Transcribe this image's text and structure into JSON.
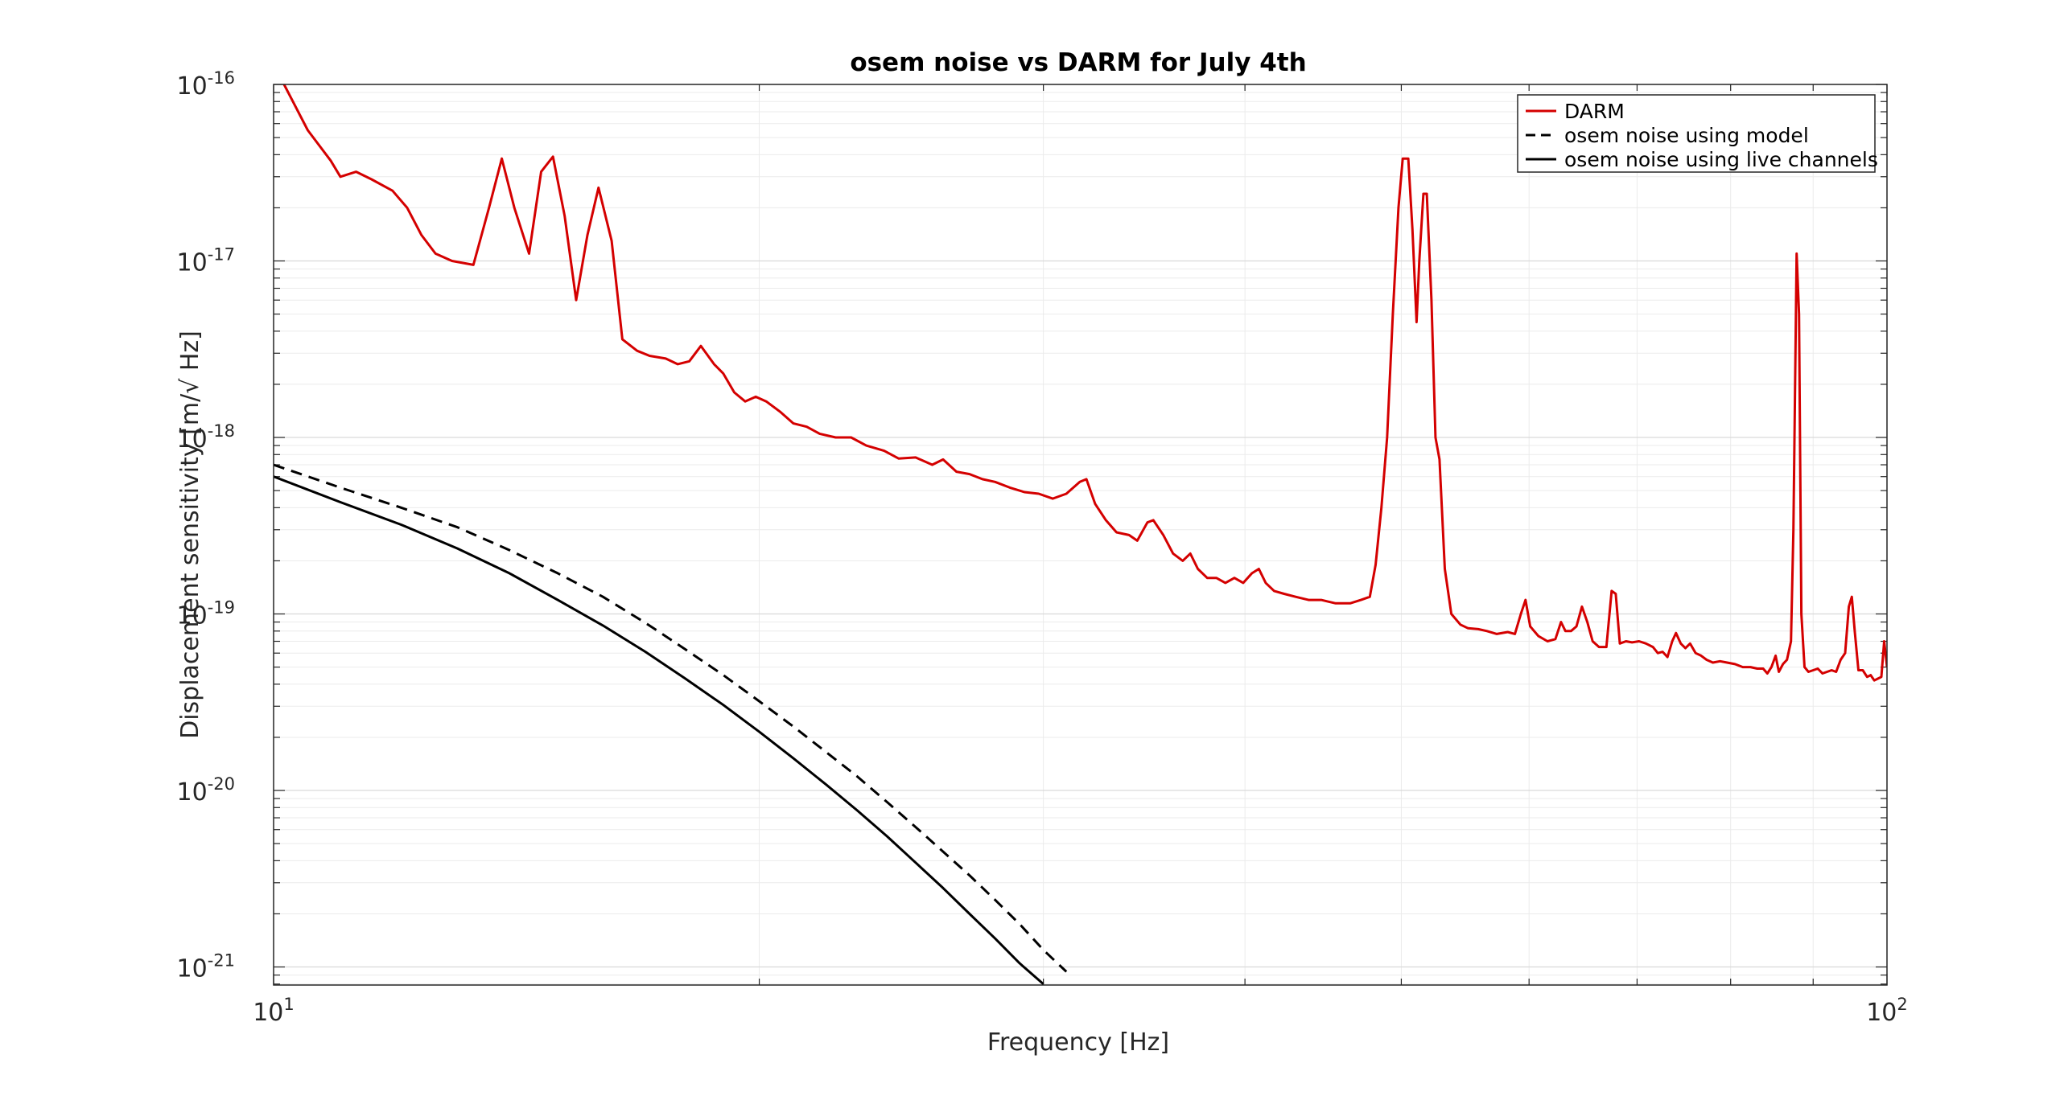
{
  "chart_data": {
    "type": "line",
    "title": "osem noise vs DARM for July 4th",
    "xlabel": "Frequency [Hz]",
    "ylabel": "Displacement sensitivity [m/√ Hz]",
    "xscale": "log",
    "yscale": "log",
    "xlim": [
      10,
      100
    ],
    "ylim": [
      7.9e-22,
      1e-16
    ],
    "grid": true,
    "legend_position": "top-right",
    "x_ticks": [
      {
        "value": 10,
        "base": "10",
        "exp": "1"
      },
      {
        "value": 100,
        "base": "10",
        "exp": "2"
      }
    ],
    "y_ticks": [
      {
        "value": 1e-21,
        "base": "10",
        "exp": "-21"
      },
      {
        "value": 1e-20,
        "base": "10",
        "exp": "-20"
      },
      {
        "value": 1e-19,
        "base": "10",
        "exp": "-19"
      },
      {
        "value": 1e-18,
        "base": "10",
        "exp": "-18"
      },
      {
        "value": 1e-17,
        "base": "10",
        "exp": "-17"
      },
      {
        "value": 1e-16,
        "base": "10",
        "exp": "-16"
      }
    ],
    "series": [
      {
        "name": "DARM",
        "color": "#d40000",
        "dash": "solid",
        "points": [
          [
            10.15,
            1e-16
          ],
          [
            10.5,
            5.5e-17
          ],
          [
            10.85,
            3.7e-17
          ],
          [
            11.0,
            3e-17
          ],
          [
            11.25,
            3.2e-17
          ],
          [
            11.5,
            2.9e-17
          ],
          [
            11.85,
            2.5e-17
          ],
          [
            12.1,
            2e-17
          ],
          [
            12.35,
            1.4e-17
          ],
          [
            12.6,
            1.1e-17
          ],
          [
            12.9,
            1e-17
          ],
          [
            13.3,
            9.5e-18
          ],
          [
            13.6,
            2e-17
          ],
          [
            13.85,
            3.8e-17
          ],
          [
            14.1,
            2e-17
          ],
          [
            14.4,
            1.1e-17
          ],
          [
            14.65,
            3.2e-17
          ],
          [
            14.9,
            3.9e-17
          ],
          [
            15.15,
            1.8e-17
          ],
          [
            15.4,
            6e-18
          ],
          [
            15.65,
            1.4e-17
          ],
          [
            15.9,
            2.6e-17
          ],
          [
            16.2,
            1.3e-17
          ],
          [
            16.45,
            3.6e-18
          ],
          [
            16.8,
            3.1e-18
          ],
          [
            17.1,
            2.9e-18
          ],
          [
            17.5,
            2.8e-18
          ],
          [
            17.8,
            2.6e-18
          ],
          [
            18.1,
            2.7e-18
          ],
          [
            18.4,
            3.3e-18
          ],
          [
            18.75,
            2.6e-18
          ],
          [
            19.0,
            2.3e-18
          ],
          [
            19.3,
            1.8e-18
          ],
          [
            19.6,
            1.6e-18
          ],
          [
            19.9,
            1.7e-18
          ],
          [
            20.2,
            1.6e-18
          ],
          [
            20.6,
            1.4e-18
          ],
          [
            21.0,
            1.2e-18
          ],
          [
            21.4,
            1.15e-18
          ],
          [
            21.8,
            1.05e-18
          ],
          [
            22.3,
            1e-18
          ],
          [
            22.8,
            1e-18
          ],
          [
            23.3,
            9e-19
          ],
          [
            23.9,
            8.4e-19
          ],
          [
            24.4,
            7.6e-19
          ],
          [
            25.0,
            7.7e-19
          ],
          [
            25.6,
            7e-19
          ],
          [
            26.0,
            7.5e-19
          ],
          [
            26.5,
            6.4e-19
          ],
          [
            27.0,
            6.2e-19
          ],
          [
            27.5,
            5.8e-19
          ],
          [
            28.0,
            5.6e-19
          ],
          [
            28.6,
            5.2e-19
          ],
          [
            29.2,
            4.9e-19
          ],
          [
            29.8,
            4.8e-19
          ],
          [
            30.4,
            4.5e-19
          ],
          [
            31.0,
            4.8e-19
          ],
          [
            31.6,
            5.6e-19
          ],
          [
            31.9,
            5.8e-19
          ],
          [
            32.3,
            4.2e-19
          ],
          [
            32.8,
            3.4e-19
          ],
          [
            33.3,
            2.9e-19
          ],
          [
            33.9,
            2.8e-19
          ],
          [
            34.3,
            2.6e-19
          ],
          [
            34.8,
            3.3e-19
          ],
          [
            35.1,
            3.4e-19
          ],
          [
            35.6,
            2.8e-19
          ],
          [
            36.1,
            2.2e-19
          ],
          [
            36.6,
            2e-19
          ],
          [
            37.0,
            2.2e-19
          ],
          [
            37.4,
            1.8e-19
          ],
          [
            37.9,
            1.6e-19
          ],
          [
            38.4,
            1.6e-19
          ],
          [
            38.9,
            1.5e-19
          ],
          [
            39.4,
            1.6e-19
          ],
          [
            39.9,
            1.5e-19
          ],
          [
            40.4,
            1.7e-19
          ],
          [
            40.8,
            1.8e-19
          ],
          [
            41.2,
            1.5e-19
          ],
          [
            41.7,
            1.35e-19
          ],
          [
            42.3,
            1.3e-19
          ],
          [
            43.0,
            1.25e-19
          ],
          [
            43.8,
            1.2e-19
          ],
          [
            44.6,
            1.2e-19
          ],
          [
            45.5,
            1.15e-19
          ],
          [
            46.5,
            1.15e-19
          ],
          [
            47.2,
            1.2e-19
          ],
          [
            47.8,
            1.25e-19
          ],
          [
            48.2,
            1.9e-19
          ],
          [
            48.6,
            4e-19
          ],
          [
            49.0,
            1e-18
          ],
          [
            49.4,
            5e-18
          ],
          [
            49.8,
            2e-17
          ],
          [
            50.1,
            3.8e-17
          ],
          [
            50.5,
            3.8e-17
          ],
          [
            50.8,
            1.5e-17
          ],
          [
            51.1,
            4.5e-18
          ],
          [
            51.3,
            1e-17
          ],
          [
            51.6,
            2.4e-17
          ],
          [
            51.85,
            2.4e-17
          ],
          [
            52.2,
            6e-18
          ],
          [
            52.5,
            1e-18
          ],
          [
            52.8,
            7.5e-19
          ],
          [
            53.2,
            1.8e-19
          ],
          [
            53.7,
            1e-19
          ],
          [
            54.4,
            8.7e-20
          ],
          [
            55.0,
            8.3e-20
          ],
          [
            55.8,
            8.2e-20
          ],
          [
            56.5,
            8e-20
          ],
          [
            57.3,
            7.7e-20
          ],
          [
            58.2,
            7.9e-20
          ],
          [
            58.8,
            7.7e-20
          ],
          [
            59.3,
            1e-19
          ],
          [
            59.7,
            1.2e-19
          ],
          [
            60.1,
            8.5e-20
          ],
          [
            60.8,
            7.5e-20
          ],
          [
            61.6,
            7e-20
          ],
          [
            62.3,
            7.2e-20
          ],
          [
            62.8,
            9e-20
          ],
          [
            63.2,
            8e-20
          ],
          [
            63.7,
            8e-20
          ],
          [
            64.2,
            8.5e-20
          ],
          [
            64.7,
            1.1e-19
          ],
          [
            65.2,
            9e-20
          ],
          [
            65.7,
            7e-20
          ],
          [
            66.3,
            6.5e-20
          ],
          [
            67.0,
            6.5e-20
          ],
          [
            67.5,
            1.35e-19
          ],
          [
            67.9,
            1.3e-19
          ],
          [
            68.3,
            6.8e-20
          ],
          [
            68.9,
            7e-20
          ],
          [
            69.5,
            6.9e-20
          ],
          [
            70.2,
            7e-20
          ],
          [
            70.9,
            6.8e-20
          ],
          [
            71.6,
            6.5e-20
          ],
          [
            72.1,
            6e-20
          ],
          [
            72.6,
            6.1e-20
          ],
          [
            73.1,
            5.7e-20
          ],
          [
            73.6,
            7e-20
          ],
          [
            74.0,
            7.8e-20
          ],
          [
            74.5,
            6.8e-20
          ],
          [
            75.0,
            6.4e-20
          ],
          [
            75.5,
            6.8e-20
          ],
          [
            76.1,
            6e-20
          ],
          [
            76.7,
            5.8e-20
          ],
          [
            77.3,
            5.5e-20
          ],
          [
            78.0,
            5.3e-20
          ],
          [
            78.8,
            5.4e-20
          ],
          [
            79.6,
            5.3e-20
          ],
          [
            80.5,
            5.2e-20
          ],
          [
            81.4,
            5e-20
          ],
          [
            82.3,
            5e-20
          ],
          [
            83.1,
            4.9e-20
          ],
          [
            83.8,
            4.9e-20
          ],
          [
            84.3,
            4.6e-20
          ],
          [
            84.8,
            5e-20
          ],
          [
            85.3,
            5.8e-20
          ],
          [
            85.7,
            4.7e-20
          ],
          [
            86.2,
            5.2e-20
          ],
          [
            86.7,
            5.5e-20
          ],
          [
            87.2,
            7e-20
          ],
          [
            87.5,
            3e-19
          ],
          [
            87.9,
            1.1e-17
          ],
          [
            88.2,
            5e-18
          ],
          [
            88.5,
            1e-19
          ],
          [
            88.9,
            5e-20
          ],
          [
            89.4,
            4.7e-20
          ],
          [
            90.0,
            4.8e-20
          ],
          [
            90.6,
            4.9e-20
          ],
          [
            91.2,
            4.6e-20
          ],
          [
            91.8,
            4.7e-20
          ],
          [
            92.4,
            4.8e-20
          ],
          [
            93.0,
            4.7e-20
          ],
          [
            93.6,
            5.5e-20
          ],
          [
            94.2,
            6e-20
          ],
          [
            94.7,
            1.1e-19
          ],
          [
            95.1,
            1.25e-19
          ],
          [
            95.5,
            8e-20
          ],
          [
            96.0,
            4.8e-20
          ],
          [
            96.6,
            4.8e-20
          ],
          [
            97.2,
            4.4e-20
          ],
          [
            97.7,
            4.5e-20
          ],
          [
            98.2,
            4.2e-20
          ],
          [
            98.7,
            4.3e-20
          ],
          [
            99.2,
            4.4e-20
          ],
          [
            99.6,
            7e-20
          ],
          [
            100.0,
            5e-20
          ]
        ]
      },
      {
        "name": "osem noise using model",
        "color": "#000000",
        "dash": "dashed",
        "points": [
          [
            10,
            7e-19
          ],
          [
            11,
            5.2e-19
          ],
          [
            12,
            4e-19
          ],
          [
            13,
            3.1e-19
          ],
          [
            14,
            2.3e-19
          ],
          [
            15,
            1.7e-19
          ],
          [
            16,
            1.25e-19
          ],
          [
            17,
            8.9e-20
          ],
          [
            18,
            6.3e-20
          ],
          [
            19,
            4.5e-20
          ],
          [
            20,
            3.2e-20
          ],
          [
            21,
            2.3e-20
          ],
          [
            22,
            1.65e-20
          ],
          [
            23,
            1.2e-20
          ],
          [
            24,
            8.6e-21
          ],
          [
            25,
            6.2e-21
          ],
          [
            26,
            4.5e-21
          ],
          [
            27,
            3.3e-21
          ],
          [
            28,
            2.4e-21
          ],
          [
            29,
            1.75e-21
          ],
          [
            30,
            1.25e-21
          ],
          [
            31,
            9.4e-22
          ]
        ]
      },
      {
        "name": "osem noise using live channels",
        "color": "#000000",
        "dash": "solid",
        "points": [
          [
            10,
            6e-19
          ],
          [
            11,
            4.3e-19
          ],
          [
            12,
            3.2e-19
          ],
          [
            13,
            2.35e-19
          ],
          [
            14,
            1.7e-19
          ],
          [
            15,
            1.2e-19
          ],
          [
            16,
            8.6e-20
          ],
          [
            17,
            6.1e-20
          ],
          [
            18,
            4.3e-20
          ],
          [
            19,
            3.05e-20
          ],
          [
            20,
            2.15e-20
          ],
          [
            21,
            1.52e-20
          ],
          [
            22,
            1.08e-20
          ],
          [
            23,
            7.7e-21
          ],
          [
            24,
            5.5e-21
          ],
          [
            25,
            3.9e-21
          ],
          [
            26,
            2.8e-21
          ],
          [
            27,
            2e-21
          ],
          [
            28,
            1.45e-21
          ],
          [
            29,
            1.05e-21
          ],
          [
            30,
            8e-22
          ]
        ]
      }
    ]
  }
}
